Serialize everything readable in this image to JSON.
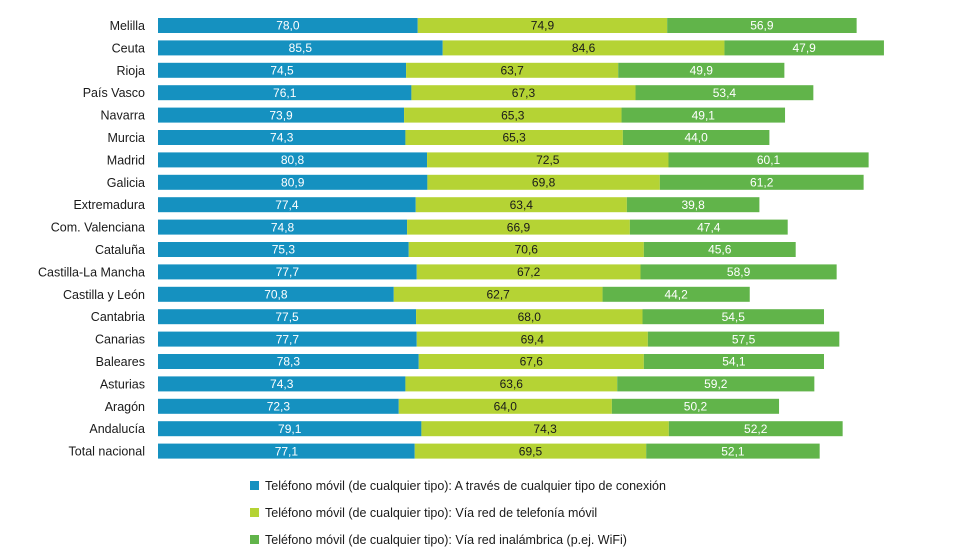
{
  "chart_data": {
    "type": "bar",
    "orientation": "horizontal",
    "stacked": true,
    "grid": false,
    "legend_position": "bottom",
    "categories": [
      "Melilla",
      "Ceuta",
      "Rioja",
      "País Vasco",
      "Navarra",
      "Murcia",
      "Madrid",
      "Galicia",
      "Extremadura",
      "Com. Valenciana",
      "Cataluña",
      "Castilla-La Mancha",
      "Castilla y León",
      "Cantabria",
      "Canarias",
      "Baleares",
      "Asturias",
      "Aragón",
      "Andalucía",
      "Total nacional"
    ],
    "series": [
      {
        "name": "Teléfono móvil (de cualquier tipo): A través de cualquier tipo de conexión",
        "color": "#1591c0",
        "label_color": "#ffffff",
        "labels": [
          "78,0",
          "85,5",
          "74,5",
          "76,1",
          "73,9",
          "74,3",
          "80,8",
          "80,9",
          "77,4",
          "74,8",
          "75,3",
          "77,7",
          "70,8",
          "77,5",
          "77,7",
          "78,3",
          "74,3",
          "72,3",
          "79,1",
          "77,1"
        ],
        "values": [
          78.0,
          85.5,
          74.5,
          76.1,
          73.9,
          74.3,
          80.8,
          80.9,
          77.4,
          74.8,
          75.3,
          77.7,
          70.8,
          77.5,
          77.7,
          78.3,
          74.3,
          72.3,
          79.1,
          77.1
        ]
      },
      {
        "name": "Teléfono móvil (de cualquier tipo): Vía red de telefonía móvil",
        "color": "#b5d334",
        "label_color": "#1a1a1a",
        "labels": [
          "74,9",
          "84,6",
          "63,7",
          "67,3",
          "65,3",
          "65,3",
          "72,5",
          "69,8",
          "63,4",
          "66,9",
          "70,6",
          "67,2",
          "62,7",
          "68,0",
          "69,4",
          "67,6",
          "63,6",
          "64,0",
          "74,3",
          "69,5"
        ],
        "values": [
          74.9,
          84.6,
          63.7,
          67.3,
          65.3,
          65.3,
          72.5,
          69.8,
          63.4,
          66.9,
          70.6,
          67.2,
          62.7,
          68.0,
          69.4,
          67.6,
          63.6,
          64.0,
          74.3,
          69.5
        ]
      },
      {
        "name": "Teléfono móvil (de cualquier tipo): Vía red inalámbrica (p.ej. WiFi)",
        "color": "#61b44a",
        "label_color": "#ffffff",
        "labels": [
          "56,9",
          "47,9",
          "49,9",
          "53,4",
          "49,1",
          "44,0",
          "60,1",
          "61,2",
          "39,8",
          "47,4",
          "45,6",
          "58,9",
          "44,2",
          "54,5",
          "57,5",
          "54,1",
          "59,2",
          "50,2",
          "52,2",
          "52,1"
        ],
        "values": [
          56.9,
          47.9,
          49.9,
          53.4,
          49.1,
          44.0,
          60.1,
          61.2,
          39.8,
          47.4,
          45.6,
          58.9,
          44.2,
          54.5,
          57.5,
          54.1,
          59.2,
          50.2,
          52.2,
          52.1
        ]
      }
    ]
  }
}
